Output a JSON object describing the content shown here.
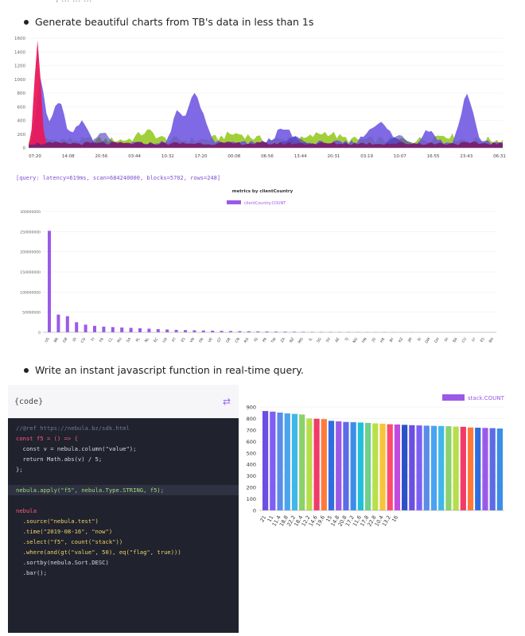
{
  "header": {
    "cut_text": ", ... ... ..."
  },
  "bullets": {
    "first": "Generate beautiful charts from TB's data in less than 1s",
    "second": "Write an instant javascript function in real-time query."
  },
  "query_info": "[query: latency=619ms, scan=684240000, blocks=5702, rows=248]",
  "code": {
    "label": "{code}",
    "swap_icon": "swap-arrows-icon",
    "lines": [
      {
        "text": "//@ref https://nebula.bz/sdk.html",
        "kind": "comment"
      },
      {
        "text": "const f5 = () => {",
        "kind": "key"
      },
      {
        "text": "  const v = nebula.column(\"value\");",
        "kind": "plain"
      },
      {
        "text": "  return Math.abs(v) / 5;",
        "kind": "plain"
      },
      {
        "text": "};",
        "kind": "plain"
      },
      {
        "text": "",
        "kind": "plain"
      },
      {
        "text": "nebula.apply(\"f5\", nebula.Type.STRING, f5);",
        "kind": "hl"
      },
      {
        "text": "",
        "kind": "plain"
      },
      {
        "text": "nebula",
        "kind": "key"
      },
      {
        "text": "  .source(\"nebula.test\")",
        "kind": "str"
      },
      {
        "text": "  .time(\"2019-08-16\", \"now\")",
        "kind": "str"
      },
      {
        "text": "  .select(\"f5\", count(\"stack\"))",
        "kind": "str"
      },
      {
        "text": "  .where(and(gt(\"value\", 50), eq(\"flag\", true)))",
        "kind": "str"
      },
      {
        "text": "  .sortby(nebula.Sort.DESC)",
        "kind": "plain"
      },
      {
        "text": "  .bar();",
        "kind": "plain"
      }
    ]
  },
  "chart_data": [
    {
      "type": "area",
      "x_ticks": [
        "07:20",
        "14:08",
        "20:56",
        "03:44",
        "10:32",
        "17:20",
        "00:08",
        "06:56",
        "13:44",
        "20:31",
        "03:19",
        "10:07",
        "16:55",
        "23:43",
        "06:31"
      ],
      "y_ticks": [
        "0",
        "200",
        "400",
        "600",
        "800",
        "1000",
        "1200",
        "1400",
        "1600"
      ],
      "ylim": [
        0,
        1600
      ],
      "colors": [
        "#e8195a",
        "#6a4fe0",
        "#9ccc2e",
        "#7a1f6e",
        "#4a3bb5"
      ],
      "spike_value": 1550
    },
    {
      "type": "bar",
      "title": "metrics by clientCountry",
      "legend": "clientCountry.COUNT",
      "color": "#9b59e8",
      "y_ticks": [
        "0",
        "50000000",
        "100000000",
        "150000000",
        "200000000",
        "250000000",
        "300000000"
      ],
      "ylim": [
        0,
        300000000
      ],
      "categories": [
        "US",
        "BR",
        "GB",
        "ID",
        "CO",
        "FI",
        "FR",
        "CL",
        "RU",
        "SA",
        "PL",
        "NL",
        "EC",
        "UA",
        "PT",
        "ES",
        "VN",
        "DK",
        "VE",
        "GT",
        "GR",
        "CN",
        "RO",
        "IQ",
        "PR",
        "TW",
        "ZA",
        "NZ",
        "MO",
        "IL",
        "SG",
        "SV",
        "AE",
        "TJ",
        "NG",
        "HN",
        "JO",
        "HR",
        "BY",
        "KZ",
        "JM",
        "SI",
        "OM",
        "GH",
        "OI",
        "BA",
        "CU",
        "LY",
        "ES",
        "BH"
      ],
      "values": [
        252000000,
        44000000,
        40000000,
        25000000,
        19000000,
        16000000,
        14000000,
        13000000,
        12000000,
        11000000,
        10000000,
        9000000,
        8000000,
        7000000,
        6000000,
        5500000,
        5000000,
        4500000,
        4000000,
        3600000,
        3200000,
        2900000,
        2600000,
        2300000,
        2100000,
        1900000,
        1700000,
        1500000,
        1300000,
        1100000,
        1000000,
        900000,
        800000,
        700000,
        600000,
        500000,
        450000,
        400000,
        350000,
        300000,
        260000,
        220000,
        190000,
        160000,
        130000,
        110000,
        90000,
        70000,
        50000,
        30000
      ]
    },
    {
      "type": "bar",
      "legend": "stack.COUNT",
      "y_ticks": [
        "0",
        "100",
        "200",
        "300",
        "400",
        "500",
        "600",
        "700",
        "800",
        "900"
      ],
      "ylim": [
        0,
        900
      ],
      "categories": [
        "21",
        "11",
        "11.4",
        "18.8",
        "22.2",
        "18.4",
        "12.2",
        "14.6",
        "19.6",
        "15",
        "14.8",
        "20.8",
        "17.2",
        "11.6",
        "17.8",
        "22.8",
        "10.4",
        "13.2",
        "16",
        "",
        "",
        "",
        "",
        "",
        "",
        "",
        "",
        "",
        "",
        "",
        "",
        "",
        ""
      ],
      "values": [
        865,
        860,
        852,
        845,
        840,
        835,
        800,
        798,
        795,
        780,
        775,
        770,
        768,
        765,
        762,
        758,
        755,
        750,
        748,
        745,
        742,
        740,
        738,
        736,
        735,
        733,
        730,
        728,
        722,
        720,
        718,
        716,
        713
      ],
      "colors": [
        "#6c4fe0",
        "#7d5ff5",
        "#5b8be8",
        "#4aa3f0",
        "#3fb8e8",
        "#8dd16a",
        "#b7de4a",
        "#f23a6a",
        "#ff7a3a",
        "#2f6de0",
        "#9b59e8",
        "#5d6be8",
        "#3a8ee8",
        "#1fc0d8",
        "#6fd08a",
        "#b8e04a",
        "#f5c53a",
        "#ff4a70",
        "#c24ae0",
        "#2a52c8"
      ]
    }
  ]
}
